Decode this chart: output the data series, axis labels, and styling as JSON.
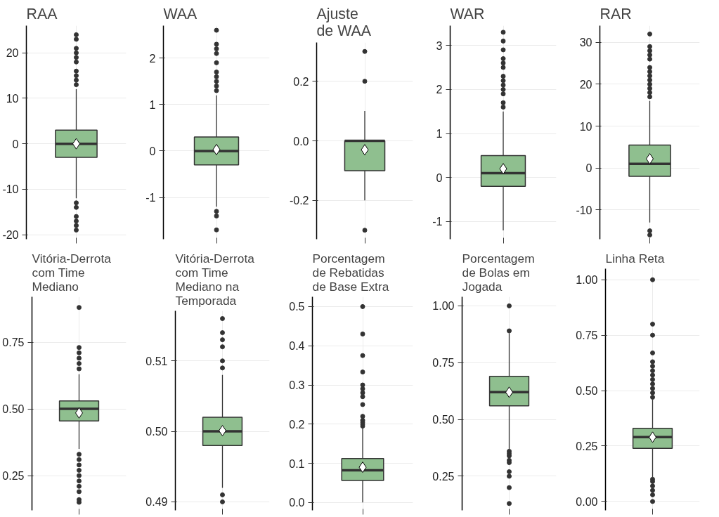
{
  "chart_data": [
    {
      "type": "box",
      "title": "RAA",
      "categories": [
        null
      ],
      "color": "#8fbf8f",
      "grid": true,
      "ylim": [
        -21,
        26
      ],
      "yticks": [
        -20,
        -10,
        0,
        10,
        20
      ],
      "boxes": [
        {
          "low": -12,
          "q1": -3,
          "median": 0,
          "q3": 3,
          "high": 12,
          "mean": 0,
          "outliers": [
            13,
            14,
            15,
            16,
            18,
            19,
            20,
            21,
            23,
            24,
            -13,
            -14,
            -16,
            -17,
            -18,
            -19
          ]
        }
      ]
    },
    {
      "type": "box",
      "title": "WAA",
      "categories": [
        null
      ],
      "color": "#8fbf8f",
      "grid": true,
      "ylim": [
        -1.9,
        2.7
      ],
      "yticks": [
        -1,
        0,
        1,
        2
      ],
      "boxes": [
        {
          "low": -1.2,
          "q1": -0.3,
          "median": 0,
          "q3": 0.3,
          "high": 1.2,
          "mean": 0.03,
          "outliers": [
            1.3,
            1.4,
            1.5,
            1.6,
            1.7,
            1.9,
            2.1,
            2.2,
            2.3,
            2.6,
            -1.3,
            -1.4,
            -1.7
          ]
        }
      ]
    },
    {
      "type": "box",
      "title": "Ajuste\nde WAA",
      "categories": [
        null
      ],
      "color": "#8fbf8f",
      "grid": true,
      "ylim": [
        -0.33,
        0.33
      ],
      "yticks": [
        {
          "value": -0.2,
          "label": "-0.2"
        },
        {
          "value": 0,
          "label": "0.0"
        },
        {
          "value": 0.2,
          "label": "0.2"
        }
      ],
      "boxes": [
        {
          "low": -0.2,
          "q1": -0.1,
          "median": 0,
          "q3": 0,
          "high": 0.1,
          "mean": -0.03,
          "outliers": [
            0.2,
            0.3,
            -0.3
          ]
        }
      ]
    },
    {
      "type": "box",
      "title": "WAR",
      "categories": [
        null
      ],
      "color": "#8fbf8f",
      "grid": true,
      "ylim": [
        -1.4,
        3.45
      ],
      "yticks": [
        -1,
        0,
        1,
        2,
        3
      ],
      "boxes": [
        {
          "low": -1.2,
          "q1": -0.2,
          "median": 0.1,
          "q3": 0.5,
          "high": 1.5,
          "mean": 0.2,
          "outliers": [
            1.6,
            1.7,
            1.9,
            2.0,
            2.1,
            2.2,
            2.3,
            2.5,
            2.6,
            2.7,
            2.9,
            3.1,
            3.3
          ]
        }
      ]
    },
    {
      "type": "box",
      "title": "RAR",
      "categories": [
        null
      ],
      "color": "#8fbf8f",
      "grid": true,
      "ylim": [
        -17,
        34
      ],
      "yticks": [
        -10,
        0,
        10,
        20,
        30
      ],
      "boxes": [
        {
          "low": -13,
          "q1": -2,
          "median": 1,
          "q3": 5.5,
          "high": 16,
          "mean": 2.2,
          "outliers": [
            17,
            18,
            19,
            20,
            21,
            22,
            23,
            24,
            26,
            27,
            28,
            29,
            32,
            -15,
            -16
          ]
        }
      ]
    },
    {
      "type": "box",
      "title": "Vitória-Derrota\ncom Time\nMediano",
      "categories": [
        null
      ],
      "color": "#8fbf8f",
      "grid": true,
      "ylim": [
        0.12,
        0.92
      ],
      "yticks": [
        0.25,
        {
          "value": 0.5,
          "label": "0.50"
        },
        0.75
      ],
      "boxes": [
        {
          "low": 0.35,
          "q1": 0.455,
          "median": 0.5,
          "q3": 0.53,
          "high": 0.63,
          "mean": 0.485,
          "outliers": [
            0.65,
            0.67,
            0.69,
            0.71,
            0.73,
            0.88,
            0.33,
            0.31,
            0.29,
            0.27,
            0.25,
            0.23,
            0.21,
            0.19,
            0.16,
            0.15
          ]
        }
      ]
    },
    {
      "type": "box",
      "title": "Vitória-Derrota\ncom Time\nMediano na\nTemporada",
      "categories": [
        null
      ],
      "color": "#8fbf8f",
      "grid": true,
      "ylim": [
        0.4888,
        0.5171
      ],
      "yticks": [
        0.49,
        {
          "value": 0.5,
          "label": "0.50"
        },
        0.51
      ],
      "boxes": [
        {
          "low": 0.492,
          "q1": 0.498,
          "median": 0.5,
          "q3": 0.502,
          "high": 0.508,
          "mean": 0.5001,
          "outliers": [
            0.509,
            0.51,
            0.512,
            0.513,
            0.514,
            0.516,
            0.491,
            0.49
          ]
        }
      ]
    },
    {
      "type": "box",
      "title": "Porcentagem\nde Rebatidas\nde Base Extra",
      "categories": [
        null
      ],
      "color": "#8fbf8f",
      "grid": true,
      "ylim": [
        -0.02,
        0.525
      ],
      "yticks": [
        {
          "value": 0,
          "label": "0.0"
        },
        0.1,
        0.2,
        0.3,
        0.4,
        0.5
      ],
      "boxes": [
        {
          "low": 0,
          "q1": 0.056,
          "median": 0.082,
          "q3": 0.112,
          "high": 0.19,
          "mean": 0.09,
          "outliers": [
            0.195,
            0.2,
            0.205,
            0.21,
            0.22,
            0.25,
            0.27,
            0.28,
            0.29,
            0.3,
            0.333,
            0.375,
            0.43,
            0.5
          ]
        }
      ]
    },
    {
      "type": "box",
      "title": "Porcentagem\nde Bolas em\nJogada",
      "categories": [
        null
      ],
      "color": "#8fbf8f",
      "grid": true,
      "ylim": [
        0.1,
        1.04
      ],
      "yticks": [
        0.25,
        {
          "value": 0.5,
          "label": "0.50"
        },
        0.75,
        {
          "value": 1,
          "label": "1.00"
        }
      ],
      "boxes": [
        {
          "low": 0.37,
          "q1": 0.56,
          "median": 0.62,
          "q3": 0.69,
          "high": 0.88,
          "mean": 0.62,
          "outliers": [
            0.89,
            1.0,
            0.36,
            0.35,
            0.34,
            0.32,
            0.31,
            0.27,
            0.25,
            0.2,
            0.13
          ]
        }
      ]
    },
    {
      "type": "box",
      "title": "Linha Reta",
      "categories": [
        null
      ],
      "color": "#8fbf8f",
      "grid": true,
      "ylim": [
        -0.04,
        1.05
      ],
      "yticks": [
        {
          "value": 0,
          "label": "0.00"
        },
        0.25,
        {
          "value": 0.5,
          "label": "0.50"
        },
        0.75,
        {
          "value": 1,
          "label": "1.00"
        }
      ],
      "boxes": [
        {
          "low": 0.11,
          "q1": 0.24,
          "median": 0.29,
          "q3": 0.33,
          "high": 0.46,
          "mean": 0.29,
          "outliers": [
            0.47,
            0.49,
            0.51,
            0.53,
            0.55,
            0.57,
            0.59,
            0.61,
            0.63,
            0.67,
            0.75,
            0.8,
            1.0,
            0.1,
            0.09,
            0.07,
            0.05,
            0.03,
            0.0
          ]
        }
      ]
    }
  ]
}
